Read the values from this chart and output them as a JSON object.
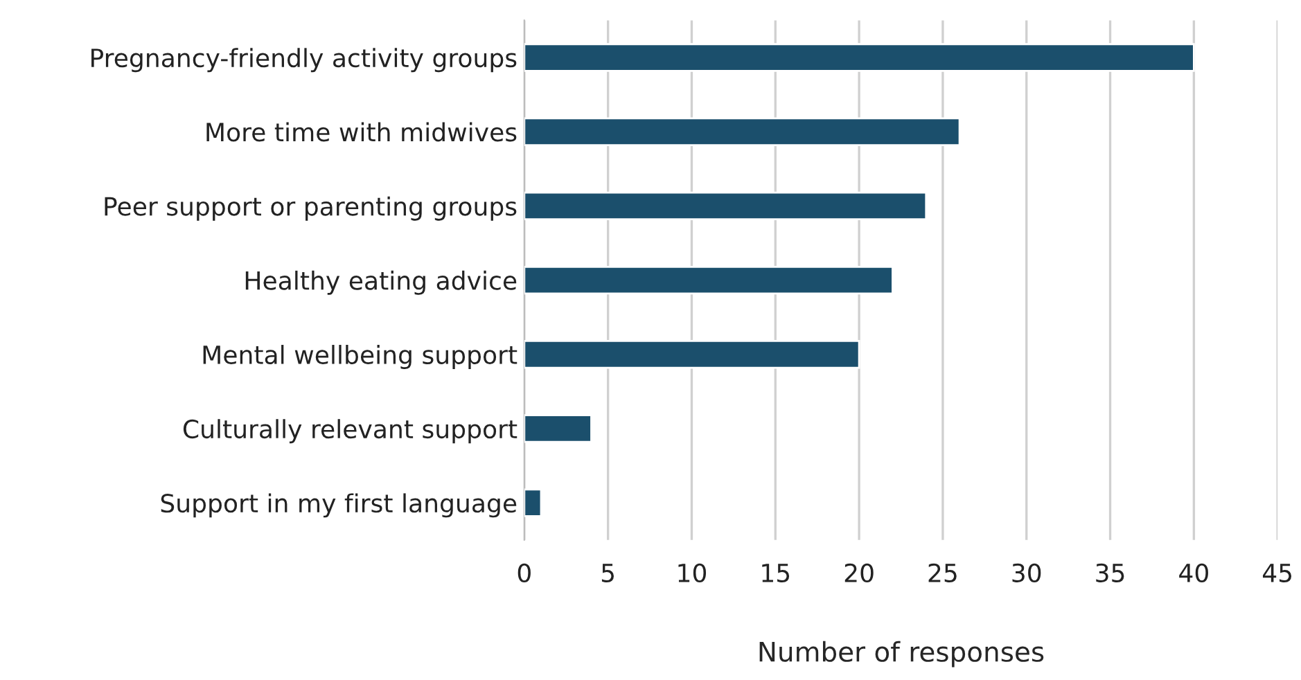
{
  "chart_data": {
    "type": "bar",
    "orientation": "horizontal",
    "xlabel": "Number of responses",
    "categories": [
      "Pregnancy-friendly activity groups",
      "More time with midwives",
      "Peer support or parenting groups",
      "Healthy eating advice",
      "Mental wellbeing support",
      "Culturally relevant support",
      "Support in my first language"
    ],
    "values": [
      40,
      26,
      24,
      22,
      20,
      4,
      1
    ],
    "color": "#1b4f6c",
    "xlim": [
      0,
      45
    ],
    "xticks": [
      0,
      5,
      10,
      15,
      20,
      25,
      30,
      35,
      40,
      45
    ],
    "grid": "x",
    "legend": false
  }
}
